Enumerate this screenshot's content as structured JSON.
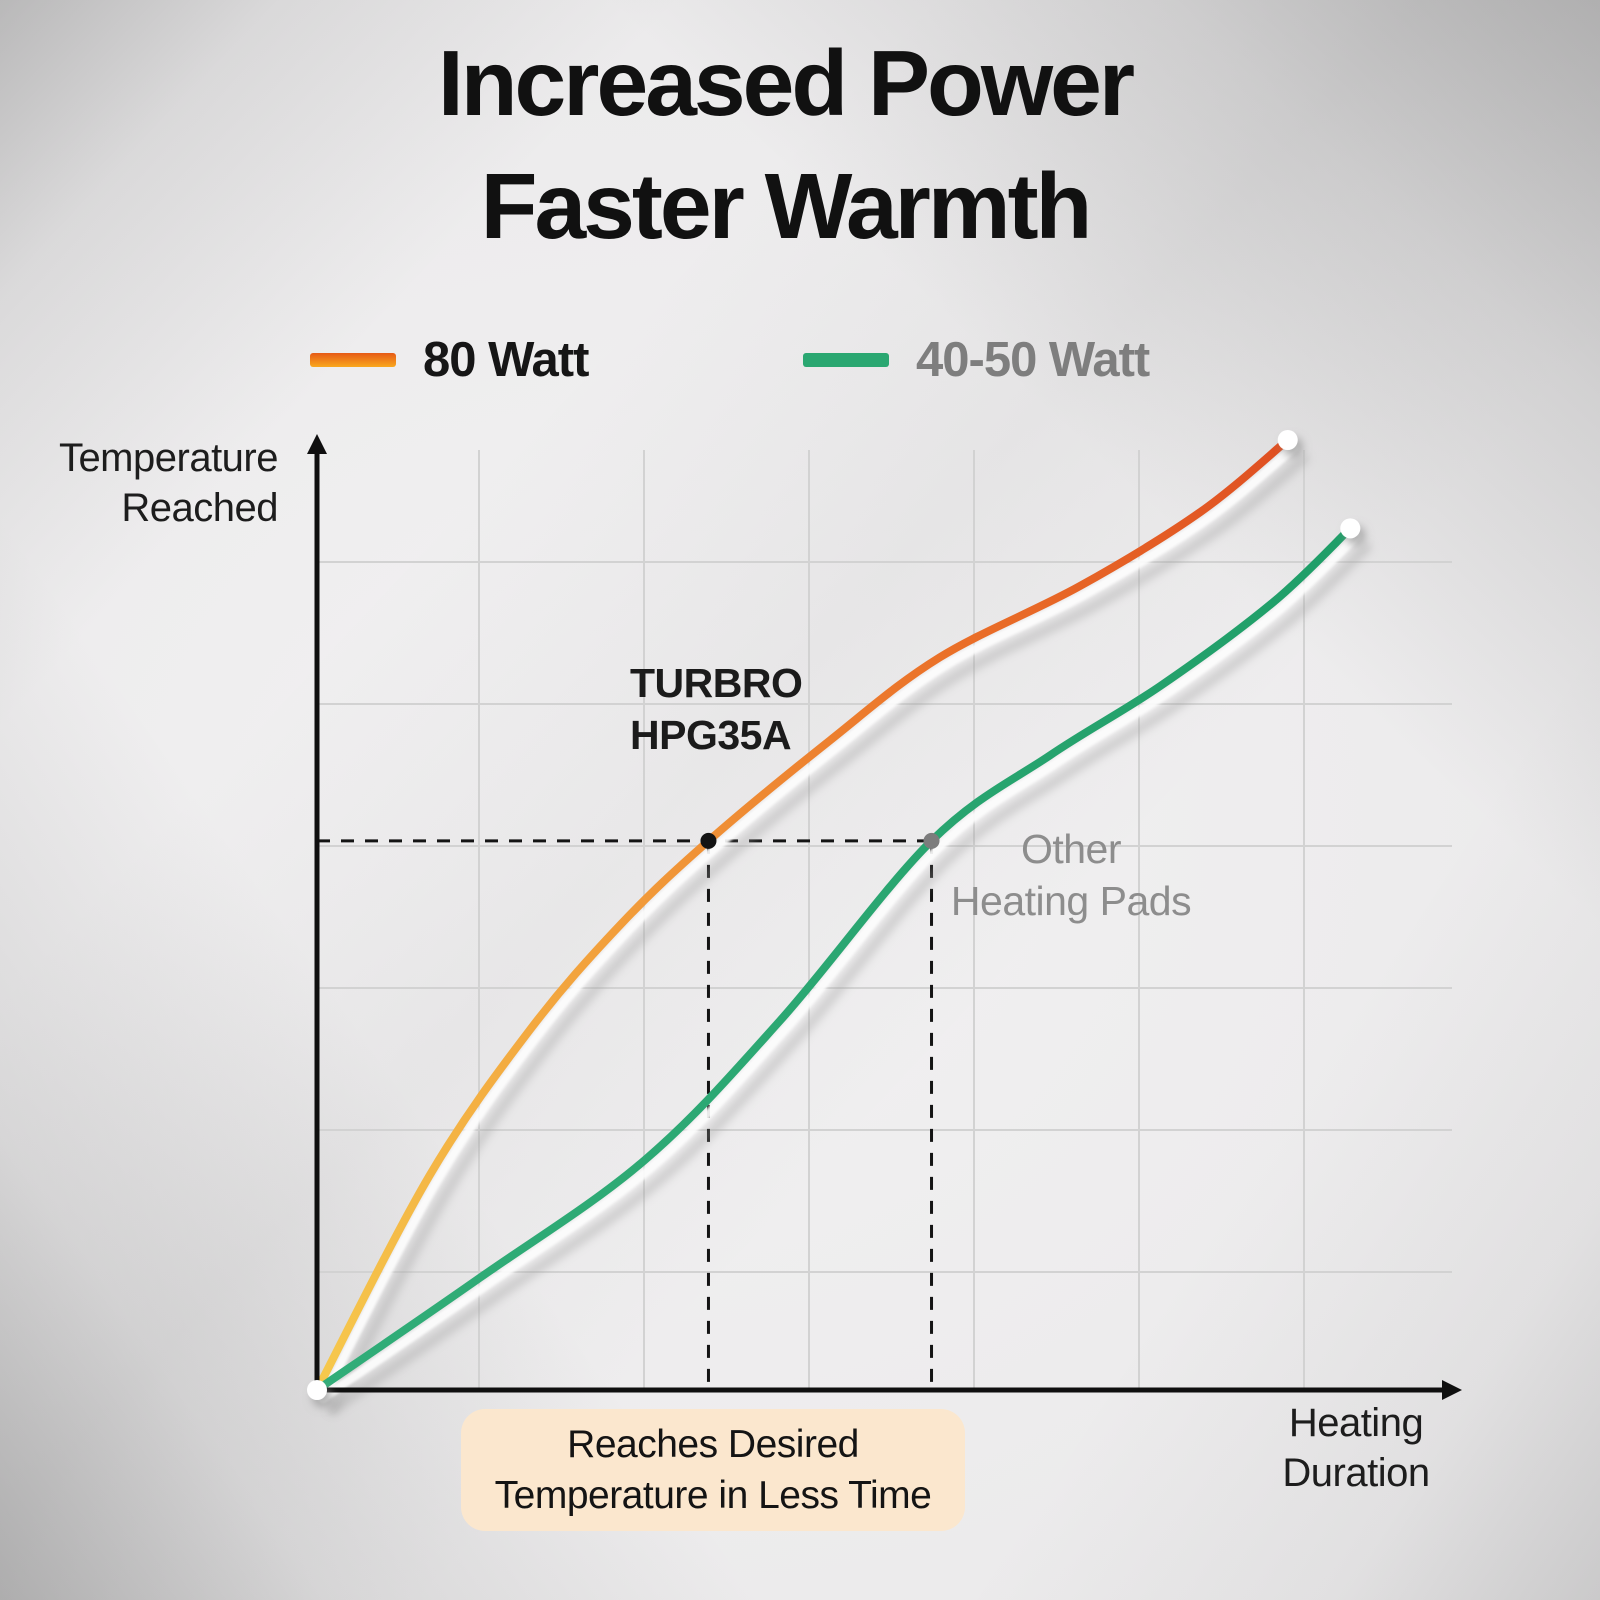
{
  "title": {
    "line1": "Increased Power",
    "line2": "Faster Warmth"
  },
  "legend": [
    {
      "label": "80 Watt",
      "swatch": {
        "type": "gradient",
        "colors": [
          "#e65a15",
          "#f9a81e"
        ]
      }
    },
    {
      "label": "40-50 Watt",
      "swatch": {
        "type": "solid",
        "colors": [
          "#2aa771"
        ]
      }
    }
  ],
  "axes": {
    "y_label_line1": "Temperature",
    "y_label_line2": "Reached",
    "x_label_line1": "Heating",
    "x_label_line2": "Duration"
  },
  "annotations": {
    "series1_line1": "TURBRO",
    "series1_line2": "HPG35A",
    "series2_line1": "Other",
    "series2_line2": "Heating Pads"
  },
  "callout": {
    "line1": "Reaches Desired",
    "line2": "Temperature in Less Time",
    "bg": "#fbe7ce"
  },
  "colors": {
    "axis": "#0f0f0f",
    "grid": "#d2d2d2",
    "dashed": "#141414",
    "marker_fast": "#141414",
    "marker_slow": "#7c7c7c",
    "endpoint": "#ffffff",
    "curve_shadow": "#9b9b9b"
  },
  "chart_data": {
    "type": "line",
    "title": "Increased Power Faster Warmth",
    "xlabel": "Heating Duration",
    "ylabel": "Temperature Reached",
    "axis_numeric": false,
    "grid": true,
    "legend_position": "top",
    "x_range_norm": [
      0,
      1
    ],
    "y_range_norm": [
      0,
      1
    ],
    "series": [
      {
        "name": "80 Watt",
        "product_label": "TURBRO HPG35A",
        "gradient": [
          [
            0,
            "#f6c94d"
          ],
          [
            0.38,
            "#f2a03c"
          ],
          [
            0.72,
            "#ea6f28"
          ],
          [
            1,
            "#df4f22"
          ]
        ],
        "points": [
          [
            0,
            0
          ],
          [
            0.099,
            0.226
          ],
          [
            0.187,
            0.379
          ],
          [
            0.266,
            0.489
          ],
          [
            0.344,
            0.578
          ],
          [
            0.451,
            0.684
          ],
          [
            0.547,
            0.771
          ],
          [
            0.67,
            0.846
          ],
          [
            0.776,
            0.924
          ],
          [
            0.853,
            1.0
          ]
        ]
      },
      {
        "name": "40-50 Watt",
        "product_label": "Other Heating Pads",
        "gradient": [
          [
            0,
            "#31ad78"
          ],
          [
            0.55,
            "#2aa671"
          ],
          [
            1,
            "#1f9e68"
          ]
        ],
        "points": [
          [
            0,
            0
          ],
          [
            0.143,
            0.118
          ],
          [
            0.288,
            0.242
          ],
          [
            0.407,
            0.389
          ],
          [
            0.54,
            0.578
          ],
          [
            0.644,
            0.668
          ],
          [
            0.741,
            0.741
          ],
          [
            0.84,
            0.829
          ],
          [
            0.908,
            0.907
          ]
        ]
      }
    ],
    "reference": {
      "desired_temperature_norm": 0.578,
      "time_to_reach_80w_norm": 0.344,
      "time_to_reach_40_50w_norm": 0.54,
      "note": "Reaches Desired Temperature in Less Time"
    }
  }
}
